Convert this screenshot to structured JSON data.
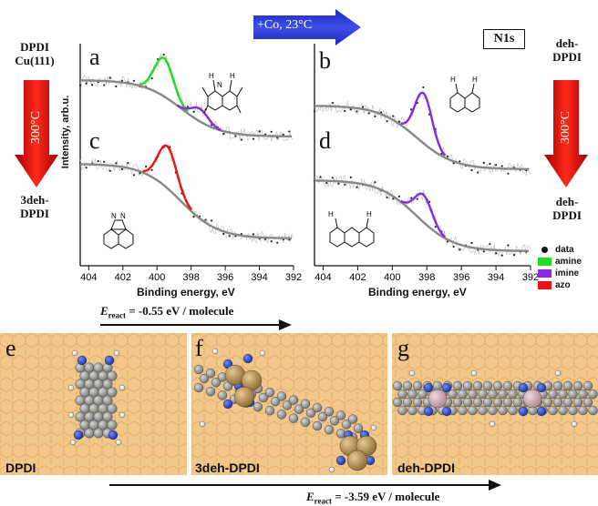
{
  "top": {
    "top_arrow_label": "+Co, 23°C",
    "n1s_box": "N1s",
    "left_label_1": "DPDI",
    "left_label_2": "Cu(111)",
    "left_arrow_label": "300°C",
    "left_bottom_1": "3deh-",
    "left_bottom_2": "DPDI",
    "right_label_1": "deh-",
    "right_label_2": "DPDI",
    "right_arrow_label": "300°C",
    "right_bottom_1": "deh-",
    "right_bottom_2": "DPDI",
    "ylabel": "Intensity, arb.u.",
    "xlabel_left": "Binding energy, eV",
    "xlabel_right": "Binding energy, eV",
    "panel_a": "a",
    "panel_b": "b",
    "panel_c": "c",
    "panel_d": "d"
  },
  "legend": {
    "data": "data",
    "amine": "amine",
    "imine": "imine",
    "azo": "azo"
  },
  "colors": {
    "amine": "#22dd22",
    "imine": "#8a2be2",
    "azo": "#ee1111",
    "background_fit": "#888888",
    "arrow_red": "#e01010",
    "arrow_blue": "#2233cc",
    "cu_surface": "#f2c88a"
  },
  "chart_data": [
    {
      "type": "line",
      "panel": "a",
      "x_ticks": [
        404,
        402,
        400,
        398,
        396,
        394,
        392
      ],
      "xlim": [
        404.5,
        392
      ],
      "series": [
        {
          "name": "amine",
          "peak_center": 399.6
        },
        {
          "name": "imine",
          "peak_center": 397.5
        }
      ]
    },
    {
      "type": "line",
      "panel": "b",
      "x_ticks": [
        404,
        402,
        400,
        398,
        396,
        394,
        392
      ],
      "xlim": [
        404.5,
        392
      ],
      "series": [
        {
          "name": "imine",
          "peak_center": 398.2
        }
      ]
    },
    {
      "type": "line",
      "panel": "c",
      "x_ticks": [
        404,
        402,
        400,
        398,
        396,
        394,
        392
      ],
      "xlim": [
        404.5,
        392
      ],
      "series": [
        {
          "name": "azo",
          "peak_center": 399.4
        }
      ]
    },
    {
      "type": "line",
      "panel": "d",
      "x_ticks": [
        404,
        402,
        400,
        398,
        396,
        394,
        392
      ],
      "xlim": [
        404.5,
        392
      ],
      "series": [
        {
          "name": "imine",
          "peak_center": 398.2
        }
      ]
    }
  ],
  "bottom": {
    "energy_top_prefix": "E",
    "energy_top_sub": "react",
    "energy_top_value": " = -0.55 eV / molecule",
    "energy_bottom_prefix": "E",
    "energy_bottom_sub": "react",
    "energy_bottom_value": " = -3.59 eV / molecule",
    "panel_e": "e",
    "panel_f": "f",
    "panel_g": "g",
    "label_e": "DPDI",
    "label_f": "3deh-DPDI",
    "label_g": "deh-DPDI"
  }
}
